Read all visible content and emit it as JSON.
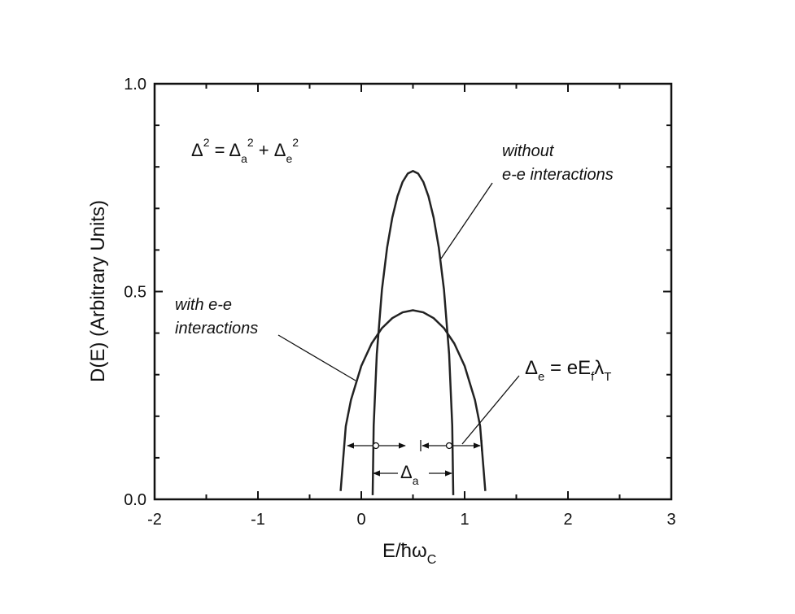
{
  "chart_data": {
    "type": "line",
    "xlabel": [
      "E/ħω",
      "C"
    ],
    "ylabel": "D(E) (Arbitrary Units)",
    "xlim": [
      -2,
      3
    ],
    "ylim": [
      0,
      1
    ],
    "xticks": [
      -2,
      -1,
      0,
      1,
      2,
      3
    ],
    "xminorticks": [
      -1.5,
      -0.5,
      0.5,
      1.5,
      2.5
    ],
    "yticks": [
      {
        "value": 0,
        "label": "0.0"
      },
      {
        "value": 0.5,
        "label": "0.5"
      },
      {
        "value": 1,
        "label": "1.0"
      }
    ],
    "yminorticks": [
      0.1,
      0.2,
      0.3,
      0.4,
      0.6,
      0.7,
      0.8,
      0.9
    ],
    "series": [
      {
        "name": "without e-e interactions",
        "label_lines": [
          "without",
          "e-e interactions"
        ],
        "color": "#222222",
        "x": [
          0.11,
          0.12,
          0.15,
          0.2,
          0.25,
          0.3,
          0.35,
          0.4,
          0.45,
          0.5,
          0.55,
          0.6,
          0.65,
          0.7,
          0.75,
          0.8,
          0.85,
          0.88,
          0.89
        ],
        "values": [
          0.01,
          0.178,
          0.349,
          0.505,
          0.606,
          0.678,
          0.729,
          0.764,
          0.784,
          0.79,
          0.784,
          0.764,
          0.729,
          0.678,
          0.606,
          0.505,
          0.349,
          0.178,
          0.01
        ]
      },
      {
        "name": "with e-e interactions",
        "label_lines": [
          "with e-e",
          "interactions"
        ],
        "color": "#222222",
        "x": [
          -0.2,
          -0.15,
          -0.1,
          0,
          0.1,
          0.2,
          0.3,
          0.4,
          0.5,
          0.6,
          0.7,
          0.8,
          0.9,
          1.0,
          1.1,
          1.15,
          1.2
        ],
        "values": [
          0.02,
          0.176,
          0.239,
          0.321,
          0.375,
          0.412,
          0.436,
          0.45,
          0.455,
          0.45,
          0.436,
          0.412,
          0.375,
          0.321,
          0.239,
          0.176,
          0.02
        ]
      }
    ],
    "equation": [
      "Δ",
      "2",
      " = Δ",
      "a",
      "2",
      " +  Δ",
      "e",
      "2"
    ],
    "delta_e": [
      "Δ",
      "e",
      " =  eE",
      "f",
      "λ",
      "T"
    ],
    "delta_a": [
      "Δ",
      "a"
    ]
  }
}
